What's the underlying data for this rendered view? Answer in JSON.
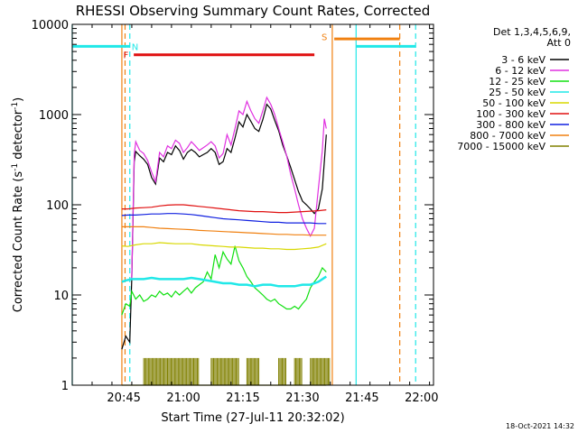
{
  "chart_data": {
    "type": "line",
    "title": "RHESSI Observing Summary Count Rates, Corrected",
    "xlabel": "Start Time (27-Jul-11 20:32:02)",
    "ylabel": "Corrected Count Rate (s",
    "ylabel_sup1": "-1",
    "ylabel_mid": " detector",
    "ylabel_sup2": "-1",
    "ylabel_end": ")",
    "yscale": "log",
    "ylim": [
      1,
      10000
    ],
    "xlim_min": [
      0,
      91
    ],
    "x_ticks": [
      {
        "min": 13,
        "label": "20:45"
      },
      {
        "min": 28,
        "label": "21:00"
      },
      {
        "min": 43,
        "label": "21:15"
      },
      {
        "min": 58,
        "label": "21:30"
      },
      {
        "min": 73,
        "label": "21:45"
      },
      {
        "min": 88,
        "label": "22:00"
      }
    ],
    "y_ticks": [
      {
        "value": 1,
        "label": "1"
      },
      {
        "value": 10,
        "label": "10"
      },
      {
        "value": 100,
        "label": "100"
      },
      {
        "value": 1000,
        "label": "1000"
      },
      {
        "value": 10000,
        "label": "10000"
      }
    ],
    "legend": {
      "placement": "right",
      "header1": "Det 1,3,4,5,6,9,",
      "header2": "Att 0",
      "entries": [
        {
          "label": "3 - 6 keV",
          "color": "#000000"
        },
        {
          "label": "6 - 12 keV",
          "color": "#e030e0"
        },
        {
          "label": "12 - 25 keV",
          "color": "#10e010"
        },
        {
          "label": "25 - 50 keV",
          "color": "#20e8e8"
        },
        {
          "label": "50 - 100 keV",
          "color": "#d8d800"
        },
        {
          "label": "100 - 300 keV",
          "color": "#e01010"
        },
        {
          "label": "300 - 800 keV",
          "color": "#1020e0"
        },
        {
          "label": "800 - 7000 keV",
          "color": "#f08010"
        },
        {
          "label": "7000 - 15000 keV",
          "color": "#808000"
        }
      ]
    },
    "series": [
      {
        "name": "3 - 6 keV",
        "color": "#000000",
        "x": [
          12.5,
          13.5,
          14.5,
          15,
          15.6,
          16,
          17,
          18,
          19,
          20,
          21,
          22,
          23,
          24,
          25,
          26,
          27,
          28,
          29,
          30,
          31,
          32,
          33,
          34,
          35,
          36,
          37,
          38,
          39,
          40,
          41,
          42,
          43,
          44,
          45,
          46,
          47,
          48,
          49,
          50,
          51,
          52,
          53,
          54,
          55,
          56,
          57,
          58,
          59,
          60,
          61,
          62,
          63,
          63.5,
          64
        ],
        "y": [
          2.5,
          3.5,
          3,
          15,
          300,
          390,
          350,
          320,
          280,
          200,
          170,
          330,
          300,
          380,
          360,
          450,
          400,
          320,
          380,
          410,
          380,
          340,
          360,
          380,
          420,
          380,
          280,
          300,
          420,
          380,
          550,
          830,
          730,
          1000,
          840,
          700,
          650,
          880,
          1300,
          1150,
          860,
          660,
          460,
          350,
          260,
          190,
          140,
          110,
          100,
          90,
          80,
          90,
          150,
          300,
          600
        ]
      },
      {
        "name": "6 - 12 keV",
        "color": "#e030e0",
        "x": [
          15,
          15.6,
          16,
          17,
          18,
          19,
          20,
          21,
          22,
          23,
          24,
          25,
          26,
          27,
          28,
          29,
          30,
          31,
          32,
          33,
          34,
          35,
          36,
          37,
          38,
          39,
          40,
          41,
          42,
          43,
          44,
          45,
          46,
          47,
          48,
          49,
          50,
          51,
          52,
          53,
          54,
          55,
          56,
          57,
          58,
          59,
          60,
          61,
          62,
          63,
          63.5,
          64
        ],
        "y": [
          15,
          360,
          500,
          400,
          370,
          310,
          230,
          180,
          380,
          340,
          450,
          420,
          520,
          480,
          380,
          430,
          500,
          450,
          400,
          430,
          460,
          500,
          450,
          330,
          370,
          600,
          460,
          700,
          1100,
          1000,
          1400,
          1100,
          900,
          800,
          1100,
          1550,
          1300,
          1000,
          700,
          500,
          350,
          220,
          150,
          100,
          70,
          55,
          45,
          55,
          150,
          400,
          900,
          700
        ]
      },
      {
        "name": "12 - 25 keV",
        "color": "#10e010",
        "x": [
          12.5,
          13.5,
          14.5,
          15,
          16,
          17,
          18,
          19,
          20,
          21,
          22,
          23,
          24,
          25,
          26,
          27,
          28,
          29,
          30,
          31,
          32,
          33,
          34,
          35,
          36,
          37,
          38,
          39,
          40,
          41,
          42,
          43,
          44,
          45,
          46,
          47,
          48,
          49,
          50,
          51,
          52,
          53,
          54,
          55,
          56,
          57,
          58,
          59,
          60,
          61,
          62,
          63,
          64
        ],
        "y": [
          6,
          8,
          7.5,
          11,
          9,
          10,
          8.5,
          9,
          10,
          9.5,
          11,
          10,
          10.5,
          9.5,
          11,
          10,
          11,
          12,
          10.5,
          12,
          13,
          14,
          18,
          15,
          28,
          20,
          30,
          25,
          22,
          35,
          24,
          20,
          16,
          14,
          12,
          11,
          10,
          9,
          8.5,
          9,
          8,
          7.5,
          7,
          7,
          7.5,
          7,
          8,
          9,
          12,
          14,
          16,
          20,
          18
        ]
      },
      {
        "name": "25 - 50 keV",
        "color": "#20e8e8",
        "x": [
          12.5,
          13.5,
          15,
          16,
          18,
          20,
          22,
          24,
          26,
          28,
          30,
          32,
          34,
          36,
          38,
          40,
          42,
          44,
          46,
          48,
          50,
          52,
          54,
          56,
          58,
          60,
          62,
          64
        ],
        "y": [
          14,
          14.5,
          15,
          15,
          15,
          15.5,
          15,
          15,
          15,
          15,
          15.5,
          15,
          14.5,
          14,
          13.5,
          13.5,
          13,
          13,
          12.5,
          13,
          13,
          12.5,
          12.5,
          12.5,
          13,
          13,
          14,
          16
        ]
      },
      {
        "name": "50 - 100 keV",
        "color": "#d8d800",
        "x": [
          12.5,
          14,
          16,
          18,
          20,
          22,
          24,
          26,
          28,
          30,
          32,
          34,
          36,
          38,
          40,
          42,
          44,
          46,
          48,
          50,
          52,
          54,
          56,
          58,
          60,
          62,
          64
        ],
        "y": [
          35,
          34.5,
          36,
          37,
          37,
          38,
          37.5,
          37,
          37,
          37,
          36,
          35.5,
          35,
          34.5,
          34,
          34,
          33.5,
          33,
          33,
          32.5,
          32.5,
          32,
          32,
          32.5,
          33,
          34,
          37
        ]
      },
      {
        "name": "100 - 300 keV",
        "color": "#e01010",
        "x": [
          12.5,
          14,
          16,
          18,
          20,
          22,
          24,
          26,
          28,
          30,
          32,
          34,
          36,
          38,
          40,
          42,
          44,
          46,
          48,
          50,
          52,
          54,
          56,
          58,
          60,
          62,
          64
        ],
        "y": [
          90,
          90,
          92,
          93,
          94,
          97,
          99,
          100,
          100,
          98,
          96,
          94,
          92,
          90,
          88,
          86,
          85,
          84,
          84,
          83,
          82,
          82,
          83,
          84,
          85,
          86,
          88
        ]
      },
      {
        "name": "300 - 800 keV",
        "color": "#1020e0",
        "x": [
          12.5,
          14,
          16,
          18,
          20,
          22,
          24,
          26,
          28,
          30,
          32,
          34,
          36,
          38,
          40,
          42,
          44,
          46,
          48,
          50,
          52,
          54,
          56,
          58,
          60,
          62,
          64
        ],
        "y": [
          76,
          77,
          77,
          78,
          79,
          79,
          80,
          80,
          79,
          78,
          76,
          74,
          72,
          70,
          69,
          68,
          67,
          66,
          65,
          64,
          64,
          63,
          63,
          63,
          63,
          62,
          62
        ]
      },
      {
        "name": "800 - 7000 keV",
        "color": "#f08010",
        "x": [
          12.5,
          14,
          16,
          18,
          20,
          22,
          24,
          26,
          28,
          30,
          32,
          34,
          36,
          38,
          40,
          42,
          44,
          46,
          48,
          50,
          52,
          54,
          56,
          58,
          60,
          62,
          64
        ],
        "y": [
          57,
          57,
          57,
          57,
          56,
          55,
          54.5,
          54,
          53.5,
          53,
          52,
          51.5,
          51,
          50.5,
          50,
          49.5,
          49,
          48.5,
          48,
          47.5,
          47,
          47,
          46.5,
          46.5,
          46,
          46,
          46
        ]
      },
      {
        "name": "7000 - 15000 keV",
        "color": "#808000",
        "x": [
          12.5,
          14,
          15,
          16,
          18,
          20,
          22,
          24,
          26,
          28,
          30,
          32,
          34,
          36,
          38,
          40,
          42,
          44,
          46,
          48,
          50,
          52,
          54,
          56,
          58,
          60,
          62,
          64
        ],
        "y": [
          1,
          1,
          1,
          1,
          1,
          1,
          1,
          1,
          1,
          1,
          1,
          1,
          1,
          1,
          1,
          1,
          1,
          1,
          1,
          1,
          1,
          1,
          1,
          1,
          1,
          1,
          1,
          1
        ]
      }
    ],
    "olive_spikes": {
      "color": "#808000",
      "ranges": [
        [
          18,
          32
        ],
        [
          35,
          42
        ],
        [
          44,
          47
        ],
        [
          52,
          54
        ],
        [
          56,
          58
        ],
        [
          60,
          65
        ]
      ],
      "value": 2
    },
    "vertical_lines": [
      {
        "min": 0,
        "color": "#20e8e8",
        "style": "solid"
      },
      {
        "min": 12.5,
        "color": "#f08010",
        "style": "solid"
      },
      {
        "min": 13.3,
        "color": "#f08010",
        "style": "dashed"
      },
      {
        "min": 14.5,
        "color": "#20e8e8",
        "style": "dashed"
      },
      {
        "min": 65.5,
        "color": "#f08010",
        "style": "solid"
      },
      {
        "min": 71.5,
        "color": "#20e8e8",
        "style": "solid"
      },
      {
        "min": 82.5,
        "color": "#f08010",
        "style": "dashed"
      },
      {
        "min": 86.5,
        "color": "#20e8e8",
        "style": "dashed"
      }
    ],
    "bars": [
      {
        "label": "N",
        "color": "#20e8e8",
        "from": 0,
        "to": 14.5,
        "y": 5700,
        "label_at": 15.8,
        "label_y": 5700
      },
      {
        "label": "",
        "color": "#20e8e8",
        "from": 71.5,
        "to": 86.5,
        "y": 5700
      },
      {
        "label": "F",
        "color": "#e01010",
        "from": 15.5,
        "to": 61.0,
        "y": 4600,
        "label_at": 13.5,
        "label_y": 4600
      },
      {
        "label": "S",
        "color": "#f08010",
        "from": 66.0,
        "to": 82.5,
        "y": 6900,
        "label_at": 63.5,
        "label_y": 7300
      }
    ],
    "timestamp": "18-Oct-2021 14:32"
  }
}
